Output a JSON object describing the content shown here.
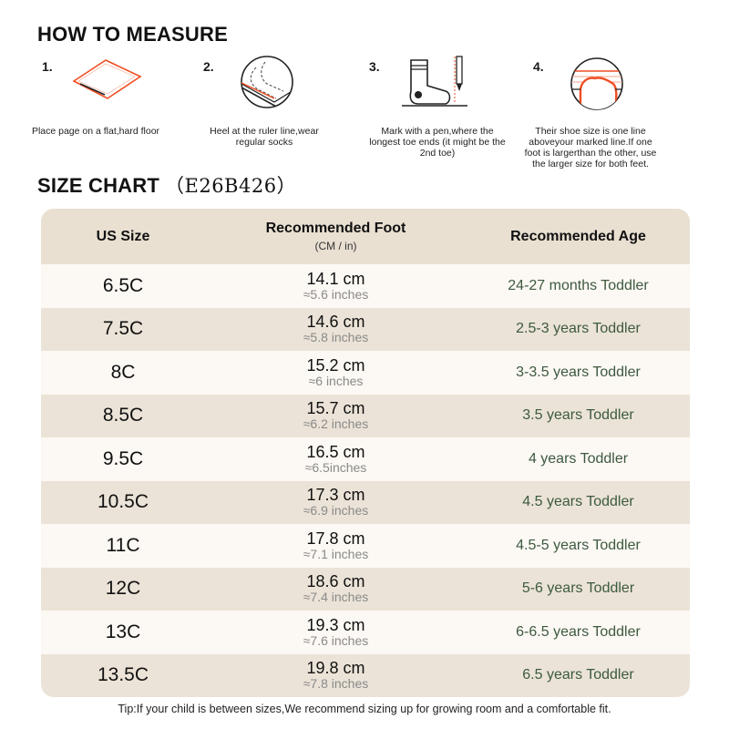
{
  "measure_title": "HOW TO MEASURE",
  "steps": [
    {
      "num": "1.",
      "caption": "Place page on a flat,hard floor",
      "icon": "paper-on-floor-icon"
    },
    {
      "num": "2.",
      "caption": "Heel at the ruler line,wear regular socks",
      "icon": "heel-on-ruler-icon"
    },
    {
      "num": "3.",
      "caption": "Mark with a pen,where the longest toe ends (it might be the 2nd toe)",
      "icon": "sock-and-pen-icon"
    },
    {
      "num": "4.",
      "caption": "Their shoe size is one line aboveyour marked line.If one foot is largerthan the other, use the larger size for both feet.",
      "icon": "toe-on-lines-icon"
    }
  ],
  "chart_title": "SIZE CHART",
  "chart_code": "（E26B426）",
  "headers": {
    "size": "US Size",
    "foot": "Recommended Foot",
    "foot_sub": "(CM / in)",
    "age": "Recommended Age"
  },
  "rows": [
    {
      "size": "6.5C",
      "cm": "14.1 cm",
      "inch": "≈5.6 inches",
      "age": "24-27 months Toddler"
    },
    {
      "size": "7.5C",
      "cm": "14.6 cm",
      "inch": "≈5.8 inches",
      "age": "2.5-3 years Toddler"
    },
    {
      "size": "8C",
      "cm": "15.2 cm",
      "inch": "≈6 inches",
      "age": "3-3.5 years Toddler"
    },
    {
      "size": "8.5C",
      "cm": "15.7 cm",
      "inch": "≈6.2 inches",
      "age": "3.5 years Toddler"
    },
    {
      "size": "9.5C",
      "cm": "16.5 cm",
      "inch": "≈6.5inches",
      "age": "4 years Toddler"
    },
    {
      "size": "10.5C",
      "cm": "17.3 cm",
      "inch": "≈6.9 inches",
      "age": "4.5 years Toddler"
    },
    {
      "size": "11C",
      "cm": "17.8 cm",
      "inch": "≈7.1 inches",
      "age": "4.5-5 years Toddler"
    },
    {
      "size": "12C",
      "cm": "18.6 cm",
      "inch": "≈7.4 inches",
      "age": "5-6 years Toddler"
    },
    {
      "size": "13C",
      "cm": "19.3 cm",
      "inch": "≈7.6 inches",
      "age": "6-6.5 years Toddler"
    },
    {
      "size": "13.5C",
      "cm": "19.8 cm",
      "inch": "≈7.8 inches",
      "age": "6.5 years Toddler"
    }
  ],
  "tip": "Tip:If your child is between sizes,We recommend sizing up for growing room and a comfortable fit.",
  "colors": {
    "accent": "#f04e23",
    "header_bg": "#e9e0d2",
    "row_light": "#fcf8f3",
    "row_dark": "#ebe3d7",
    "age_text": "#3d5a40"
  }
}
